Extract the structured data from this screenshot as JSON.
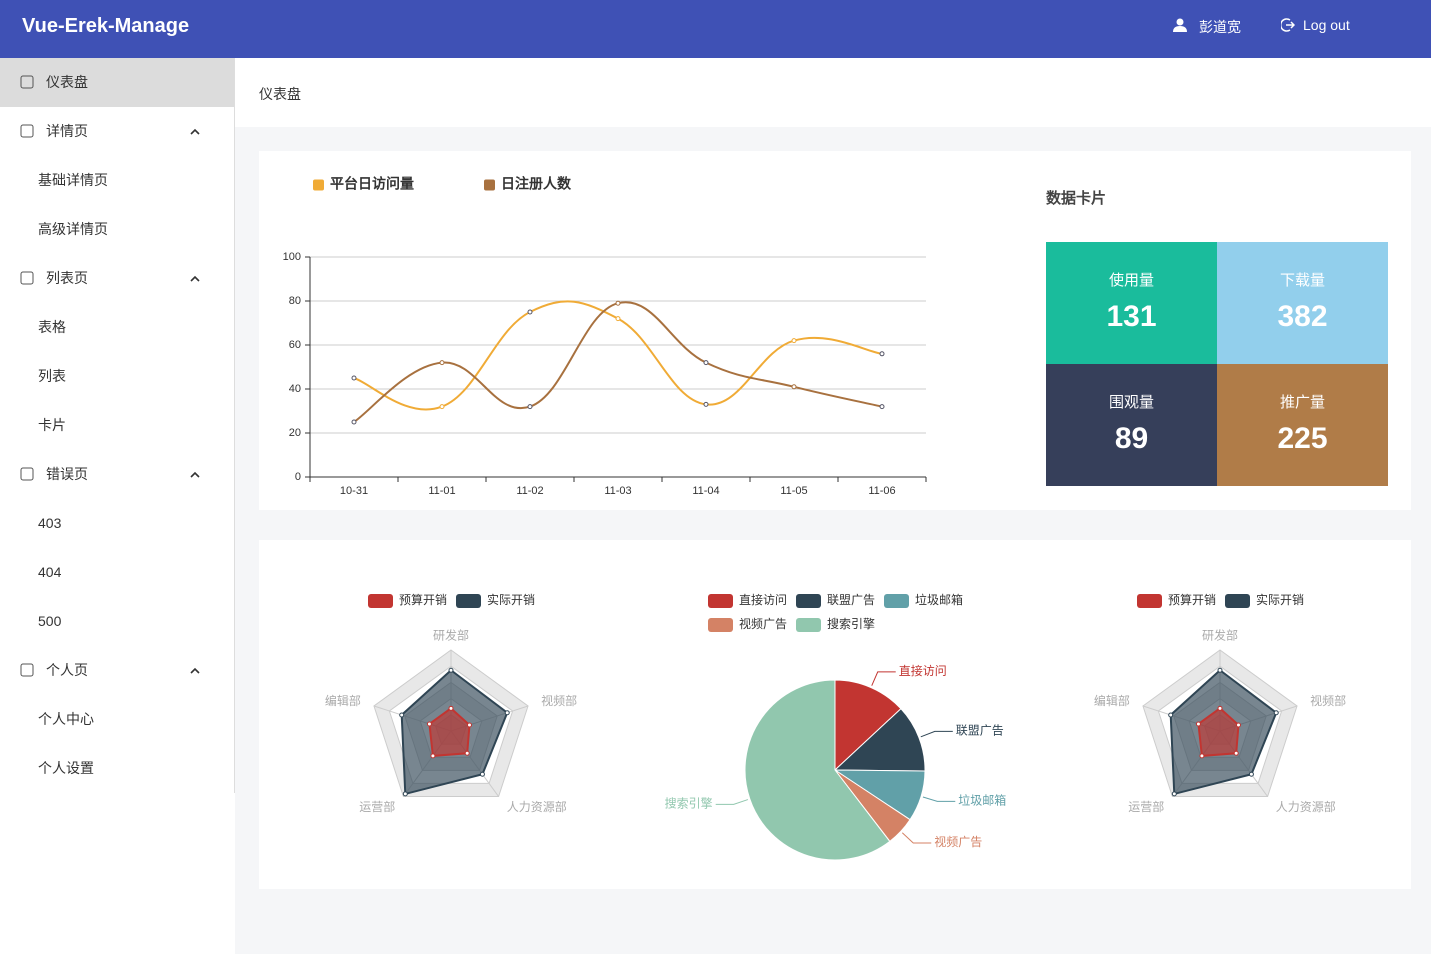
{
  "header": {
    "title": "Vue-Erek-Manage",
    "user": "彭道宽",
    "logout": "Log out"
  },
  "sidebar": {
    "items": [
      {
        "label": "仪表盘"
      },
      {
        "label": "详情页"
      },
      {
        "label": "基础详情页"
      },
      {
        "label": "高级详情页"
      },
      {
        "label": "列表页"
      },
      {
        "label": "表格"
      },
      {
        "label": "列表"
      },
      {
        "label": "卡片"
      },
      {
        "label": "错误页"
      },
      {
        "label": "403"
      },
      {
        "label": "404"
      },
      {
        "label": "500"
      },
      {
        "label": "个人页"
      },
      {
        "label": "个人中心"
      },
      {
        "label": "个人设置"
      }
    ]
  },
  "breadcrumb": "仪表盘",
  "cards": {
    "title": "数据卡片",
    "items": [
      {
        "label": "使用量",
        "value": 131,
        "color": "#1abc9c"
      },
      {
        "label": "下载量",
        "value": 382,
        "color": "#92cfec"
      },
      {
        "label": "围观量",
        "value": 89,
        "color": "#363f5a"
      },
      {
        "label": "推广量",
        "value": 225,
        "color": "#b07c48"
      }
    ]
  },
  "chart_data": [
    {
      "type": "line",
      "categories": [
        "10-31",
        "11-01",
        "11-02",
        "11-03",
        "11-04",
        "11-05",
        "11-06"
      ],
      "ylim": [
        0,
        100
      ],
      "yticks": [
        0,
        20,
        40,
        60,
        80,
        100
      ],
      "grid": true,
      "smooth": true,
      "series": [
        {
          "name": "平台日访问量",
          "color": "#f0ab36",
          "values": [
            45,
            32,
            75,
            72,
            33,
            62,
            56
          ]
        },
        {
          "name": "日注册人数",
          "color": "#a8713f",
          "values": [
            25,
            52,
            32,
            79,
            52,
            41,
            32
          ]
        }
      ]
    },
    {
      "type": "radar",
      "indicators": [
        "研发部",
        "视频部",
        "人力资源部",
        "运营部",
        "编辑部"
      ],
      "rlim": [
        0,
        100
      ],
      "series": [
        {
          "name": "预算开销",
          "color": "#c23531",
          "values": [
            28,
            24,
            34,
            38,
            28
          ]
        },
        {
          "name": "实际开销",
          "color": "#2f4554",
          "values": [
            75,
            73,
            66,
            96,
            64
          ]
        }
      ]
    },
    {
      "type": "pie",
      "categories": [
        "直接访问",
        "联盟广告",
        "垃圾邮箱",
        "视频广告",
        "搜索引擎"
      ],
      "values": [
        335,
        310,
        234,
        135,
        1548
      ],
      "colors": [
        "#c23531",
        "#2f4554",
        "#61a0a8",
        "#d48265",
        "#91c7ae"
      ]
    },
    {
      "type": "radar",
      "indicators": [
        "研发部",
        "视频部",
        "人力资源部",
        "运营部",
        "编辑部"
      ],
      "rlim": [
        0,
        100
      ],
      "series": [
        {
          "name": "预算开销",
          "color": "#c23531",
          "values": [
            28,
            24,
            34,
            38,
            28
          ]
        },
        {
          "name": "实际开销",
          "color": "#2f4554",
          "values": [
            75,
            73,
            66,
            96,
            64
          ]
        }
      ]
    }
  ]
}
